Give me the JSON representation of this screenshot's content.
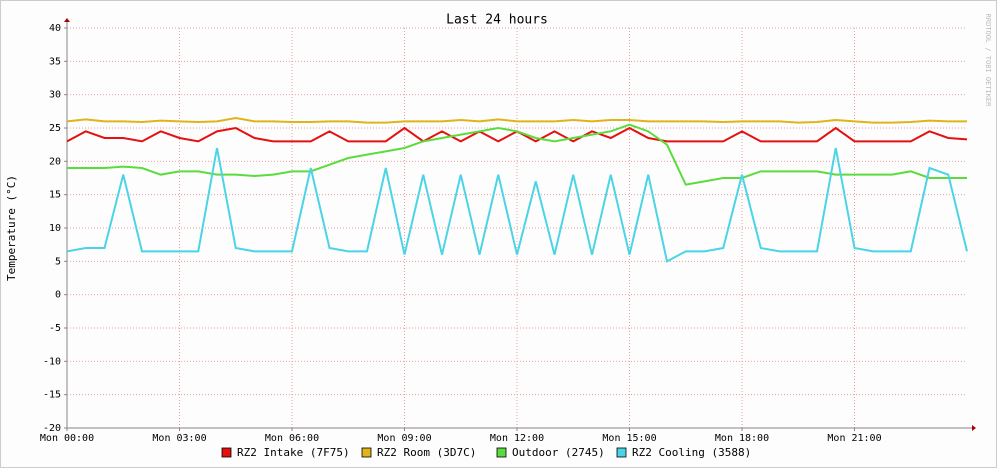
{
  "chart_data": {
    "type": "line",
    "title": "Last 24 hours",
    "ylabel": "Temperature (°C)",
    "watermark": "RRDTOOL / TOBI OETIKER",
    "x": [
      0,
      0.5,
      1,
      1.5,
      2,
      2.5,
      3,
      3.5,
      4,
      4.5,
      5,
      5.5,
      6,
      6.5,
      7,
      7.5,
      8,
      8.5,
      9,
      9.5,
      10,
      10.5,
      11,
      11.5,
      12,
      12.5,
      13,
      13.5,
      14,
      14.5,
      15,
      15.5,
      16,
      16.5,
      17,
      17.5,
      18,
      18.5,
      19,
      19.5,
      20,
      20.5,
      21,
      21.5,
      22,
      22.5,
      23,
      23.5,
      24
    ],
    "xlim": [
      0,
      24
    ],
    "xticks": [
      {
        "value": 0,
        "label": "Mon 00:00"
      },
      {
        "value": 3,
        "label": "Mon 03:00"
      },
      {
        "value": 6,
        "label": "Mon 06:00"
      },
      {
        "value": 9,
        "label": "Mon 09:00"
      },
      {
        "value": 12,
        "label": "Mon 12:00"
      },
      {
        "value": 15,
        "label": "Mon 15:00"
      },
      {
        "value": 18,
        "label": "Mon 18:00"
      },
      {
        "value": 21,
        "label": "Mon 21:00"
      }
    ],
    "ylim": [
      -20,
      40
    ],
    "yticks": [
      -20,
      -15,
      -10,
      -5,
      0,
      5,
      10,
      15,
      20,
      25,
      30,
      35,
      40
    ],
    "grid": true,
    "series": [
      {
        "name": "RZ2 Intake (7F75)",
        "color": "#e51010",
        "values": [
          23,
          24.5,
          23.5,
          23.5,
          23,
          24.5,
          23.5,
          23,
          24.5,
          25,
          23.5,
          23,
          23,
          23,
          24.5,
          23,
          23,
          23,
          25,
          23,
          24.5,
          23,
          24.5,
          23,
          24.5,
          23,
          24.5,
          23,
          24.5,
          23.5,
          25,
          23.5,
          23,
          23,
          23,
          23,
          24.5,
          23,
          23,
          23,
          23,
          25,
          23,
          23,
          23,
          23,
          24.5,
          23.5,
          23.3
        ]
      },
      {
        "name": "RZ2 Room (3D7C)",
        "color": "#e0b418",
        "values": [
          26,
          26.3,
          26,
          26,
          25.9,
          26.1,
          26,
          25.9,
          26,
          26.5,
          26,
          26,
          25.9,
          25.9,
          26,
          26,
          25.8,
          25.8,
          26,
          26,
          26,
          26.2,
          26,
          26.3,
          26,
          26,
          26,
          26.2,
          26,
          26.2,
          26.2,
          26,
          26,
          26,
          26,
          25.9,
          26,
          26,
          26,
          25.8,
          25.9,
          26.2,
          26,
          25.8,
          25.8,
          25.9,
          26.1,
          26,
          26
        ]
      },
      {
        "name": "Outdoor (2745)",
        "color": "#5cdc3c",
        "values": [
          19,
          19,
          19,
          19.2,
          19,
          18,
          18.5,
          18.5,
          18,
          18,
          17.8,
          18,
          18.5,
          18.5,
          19.5,
          20.5,
          21,
          21.5,
          22,
          23,
          23.5,
          24,
          24.5,
          25,
          24.5,
          23.5,
          23,
          23.5,
          24,
          24.5,
          25.5,
          24.5,
          22.5,
          16.5,
          17,
          17.5,
          17.5,
          18.5,
          18.5,
          18.5,
          18.5,
          18,
          18,
          18,
          18,
          18.5,
          17.5,
          17.5,
          17.5
        ]
      },
      {
        "name": "RZ2 Cooling (3588)",
        "color": "#4ad4e6",
        "values": [
          6.5,
          7,
          7,
          18,
          6.5,
          6.5,
          6.5,
          6.5,
          22,
          7,
          6.5,
          6.5,
          6.5,
          19,
          7,
          6.5,
          6.5,
          19,
          6,
          18,
          6,
          18,
          6,
          18,
          6,
          17,
          6,
          18,
          6,
          18,
          6,
          18,
          5,
          6.5,
          6.5,
          7,
          18,
          7,
          6.5,
          6.5,
          6.5,
          22,
          7,
          6.5,
          6.5,
          6.5,
          19,
          18,
          6.5
        ]
      }
    ]
  }
}
